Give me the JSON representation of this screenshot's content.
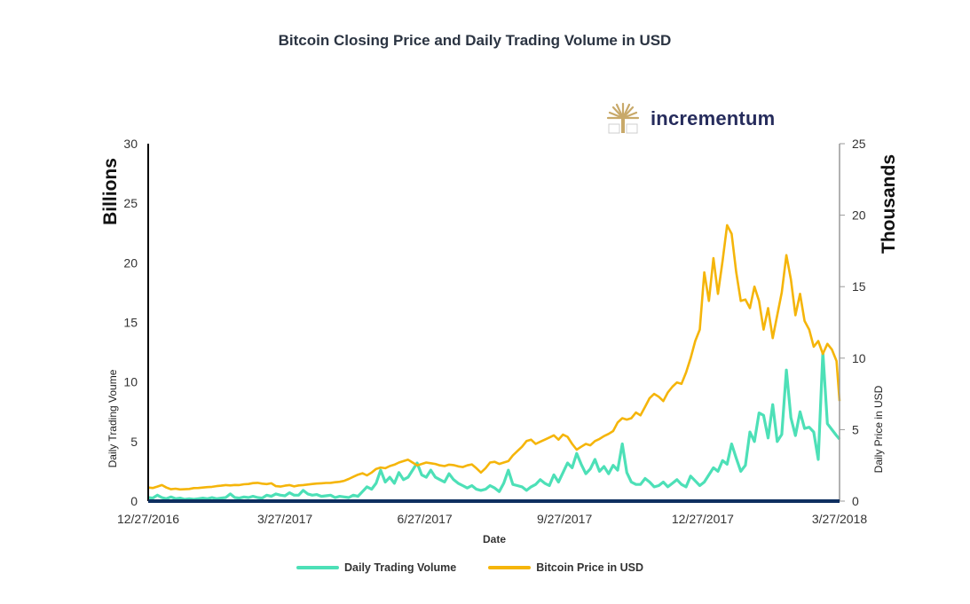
{
  "chart_data": {
    "type": "line",
    "title": "Bitcoin Closing Price and Daily Trading Volume in USD",
    "xlabel": "Date",
    "x_start_date": "12/27/2016",
    "x_end_date": "3/27/2018",
    "x_range_days": [
      0,
      455
    ],
    "x_ticks": [
      {
        "label": "12/27/2016",
        "day": 0
      },
      {
        "label": "3/27/2017",
        "day": 90
      },
      {
        "label": "6/27/2017",
        "day": 182
      },
      {
        "label": "9/27/2017",
        "day": 274
      },
      {
        "label": "12/27/2017",
        "day": 365
      },
      {
        "label": "3/27/2018",
        "day": 455
      }
    ],
    "y_left": {
      "title_big": "Billions",
      "title_small": "Daily Trading Voume",
      "range": [
        0,
        30
      ],
      "ticks": [
        "0",
        "5",
        "10",
        "15",
        "20",
        "25",
        "30"
      ]
    },
    "y_right": {
      "title_big": "Thousands",
      "title_small": "Daily Price in USD",
      "range": [
        0,
        25
      ],
      "ticks": [
        "0",
        "5",
        "10",
        "15",
        "20",
        "25"
      ]
    },
    "grid": false,
    "legend_position": "bottom",
    "series": [
      {
        "name": "Daily Trading Volume",
        "axis": "left",
        "unit": "USD billions",
        "color": "#4de0b7",
        "points": [
          [
            0,
            0.3
          ],
          [
            3,
            0.25
          ],
          [
            6,
            0.5
          ],
          [
            9,
            0.3
          ],
          [
            12,
            0.2
          ],
          [
            15,
            0.35
          ],
          [
            18,
            0.2
          ],
          [
            21,
            0.25
          ],
          [
            24,
            0.15
          ],
          [
            27,
            0.2
          ],
          [
            30,
            0.15
          ],
          [
            33,
            0.2
          ],
          [
            36,
            0.25
          ],
          [
            39,
            0.2
          ],
          [
            42,
            0.3
          ],
          [
            45,
            0.2
          ],
          [
            48,
            0.25
          ],
          [
            51,
            0.3
          ],
          [
            54,
            0.6
          ],
          [
            57,
            0.3
          ],
          [
            60,
            0.25
          ],
          [
            63,
            0.35
          ],
          [
            66,
            0.3
          ],
          [
            69,
            0.4
          ],
          [
            72,
            0.3
          ],
          [
            75,
            0.25
          ],
          [
            78,
            0.5
          ],
          [
            81,
            0.4
          ],
          [
            84,
            0.6
          ],
          [
            87,
            0.5
          ],
          [
            90,
            0.45
          ],
          [
            93,
            0.7
          ],
          [
            96,
            0.5
          ],
          [
            99,
            0.5
          ],
          [
            102,
            0.9
          ],
          [
            105,
            0.6
          ],
          [
            108,
            0.5
          ],
          [
            111,
            0.55
          ],
          [
            114,
            0.4
          ],
          [
            117,
            0.45
          ],
          [
            120,
            0.5
          ],
          [
            123,
            0.3
          ],
          [
            126,
            0.4
          ],
          [
            129,
            0.35
          ],
          [
            132,
            0.3
          ],
          [
            135,
            0.5
          ],
          [
            138,
            0.4
          ],
          [
            141,
            0.8
          ],
          [
            144,
            1.2
          ],
          [
            147,
            1.0
          ],
          [
            150,
            1.5
          ],
          [
            153,
            2.6
          ],
          [
            156,
            1.6
          ],
          [
            159,
            2.0
          ],
          [
            162,
            1.5
          ],
          [
            165,
            2.4
          ],
          [
            168,
            1.8
          ],
          [
            171,
            2.0
          ],
          [
            174,
            2.6
          ],
          [
            177,
            3.2
          ],
          [
            180,
            2.2
          ],
          [
            183,
            2.0
          ],
          [
            186,
            2.6
          ],
          [
            189,
            2.0
          ],
          [
            192,
            1.8
          ],
          [
            195,
            1.6
          ],
          [
            198,
            2.3
          ],
          [
            201,
            1.8
          ],
          [
            204,
            1.5
          ],
          [
            207,
            1.3
          ],
          [
            210,
            1.1
          ],
          [
            213,
            1.3
          ],
          [
            216,
            1.0
          ],
          [
            219,
            0.9
          ],
          [
            222,
            1.0
          ],
          [
            225,
            1.3
          ],
          [
            228,
            1.1
          ],
          [
            231,
            0.8
          ],
          [
            234,
            1.5
          ],
          [
            237,
            2.6
          ],
          [
            240,
            1.4
          ],
          [
            243,
            1.3
          ],
          [
            246,
            1.2
          ],
          [
            249,
            0.9
          ],
          [
            252,
            1.2
          ],
          [
            255,
            1.4
          ],
          [
            258,
            1.8
          ],
          [
            261,
            1.5
          ],
          [
            264,
            1.3
          ],
          [
            267,
            2.2
          ],
          [
            270,
            1.6
          ],
          [
            273,
            2.4
          ],
          [
            276,
            3.2
          ],
          [
            279,
            2.8
          ],
          [
            282,
            4.0
          ],
          [
            285,
            3.1
          ],
          [
            288,
            2.3
          ],
          [
            291,
            2.7
          ],
          [
            294,
            3.5
          ],
          [
            297,
            2.5
          ],
          [
            300,
            2.9
          ],
          [
            303,
            2.3
          ],
          [
            306,
            3.0
          ],
          [
            309,
            2.6
          ],
          [
            312,
            4.8
          ],
          [
            315,
            2.4
          ],
          [
            318,
            1.6
          ],
          [
            321,
            1.4
          ],
          [
            324,
            1.4
          ],
          [
            327,
            1.9
          ],
          [
            330,
            1.6
          ],
          [
            333,
            1.2
          ],
          [
            336,
            1.3
          ],
          [
            339,
            1.6
          ],
          [
            342,
            1.2
          ],
          [
            345,
            1.5
          ],
          [
            348,
            1.8
          ],
          [
            351,
            1.4
          ],
          [
            354,
            1.2
          ],
          [
            357,
            2.1
          ],
          [
            360,
            1.7
          ],
          [
            363,
            1.3
          ],
          [
            366,
            1.6
          ],
          [
            369,
            2.2
          ],
          [
            372,
            2.8
          ],
          [
            375,
            2.5
          ],
          [
            378,
            3.4
          ],
          [
            381,
            3.1
          ],
          [
            384,
            4.8
          ],
          [
            387,
            3.6
          ],
          [
            390,
            2.5
          ],
          [
            393,
            3.0
          ],
          [
            396,
            5.8
          ],
          [
            399,
            5.0
          ],
          [
            402,
            7.4
          ],
          [
            405,
            7.2
          ],
          [
            408,
            5.3
          ],
          [
            411,
            8.1
          ],
          [
            414,
            5.0
          ],
          [
            417,
            5.6
          ],
          [
            420,
            11.0
          ],
          [
            423,
            7.0
          ],
          [
            426,
            5.5
          ],
          [
            429,
            7.5
          ],
          [
            432,
            6.1
          ],
          [
            435,
            6.2
          ],
          [
            438,
            5.8
          ],
          [
            441,
            3.5
          ],
          [
            444,
            12.5
          ],
          [
            447,
            6.5
          ],
          [
            450,
            6.0
          ],
          [
            453,
            5.5
          ],
          [
            455,
            5.2
          ]
        ]
      },
      {
        "name": "Bitcoin Price in USD",
        "axis": "right",
        "unit": "USD thousands",
        "color": "#f5b50a",
        "points": [
          [
            0,
            0.95
          ],
          [
            3,
            0.92
          ],
          [
            6,
            1.02
          ],
          [
            9,
            1.12
          ],
          [
            12,
            0.95
          ],
          [
            15,
            0.83
          ],
          [
            18,
            0.87
          ],
          [
            21,
            0.82
          ],
          [
            24,
            0.83
          ],
          [
            27,
            0.85
          ],
          [
            30,
            0.91
          ],
          [
            33,
            0.92
          ],
          [
            36,
            0.95
          ],
          [
            39,
            0.98
          ],
          [
            42,
            1.0
          ],
          [
            45,
            1.05
          ],
          [
            48,
            1.08
          ],
          [
            51,
            1.12
          ],
          [
            54,
            1.1
          ],
          [
            57,
            1.13
          ],
          [
            60,
            1.12
          ],
          [
            63,
            1.18
          ],
          [
            66,
            1.2
          ],
          [
            69,
            1.26
          ],
          [
            72,
            1.28
          ],
          [
            75,
            1.22
          ],
          [
            78,
            1.19
          ],
          [
            81,
            1.25
          ],
          [
            84,
            1.05
          ],
          [
            87,
            1.02
          ],
          [
            90,
            1.08
          ],
          [
            93,
            1.12
          ],
          [
            96,
            1.03
          ],
          [
            99,
            1.1
          ],
          [
            102,
            1.12
          ],
          [
            105,
            1.16
          ],
          [
            108,
            1.2
          ],
          [
            111,
            1.23
          ],
          [
            114,
            1.25
          ],
          [
            117,
            1.27
          ],
          [
            120,
            1.28
          ],
          [
            123,
            1.32
          ],
          [
            126,
            1.35
          ],
          [
            129,
            1.42
          ],
          [
            132,
            1.55
          ],
          [
            135,
            1.7
          ],
          [
            138,
            1.85
          ],
          [
            141,
            1.95
          ],
          [
            144,
            1.8
          ],
          [
            147,
            2.0
          ],
          [
            150,
            2.25
          ],
          [
            153,
            2.35
          ],
          [
            156,
            2.3
          ],
          [
            159,
            2.45
          ],
          [
            162,
            2.55
          ],
          [
            165,
            2.7
          ],
          [
            168,
            2.8
          ],
          [
            171,
            2.9
          ],
          [
            174,
            2.7
          ],
          [
            177,
            2.5
          ],
          [
            180,
            2.6
          ],
          [
            183,
            2.7
          ],
          [
            186,
            2.65
          ],
          [
            189,
            2.6
          ],
          [
            192,
            2.5
          ],
          [
            195,
            2.45
          ],
          [
            198,
            2.55
          ],
          [
            201,
            2.52
          ],
          [
            204,
            2.43
          ],
          [
            207,
            2.38
          ],
          [
            210,
            2.5
          ],
          [
            213,
            2.57
          ],
          [
            216,
            2.3
          ],
          [
            219,
            2.0
          ],
          [
            222,
            2.3
          ],
          [
            225,
            2.7
          ],
          [
            228,
            2.75
          ],
          [
            231,
            2.6
          ],
          [
            234,
            2.7
          ],
          [
            237,
            2.8
          ],
          [
            240,
            3.2
          ],
          [
            243,
            3.5
          ],
          [
            246,
            3.8
          ],
          [
            249,
            4.2
          ],
          [
            252,
            4.3
          ],
          [
            255,
            4.0
          ],
          [
            258,
            4.15
          ],
          [
            261,
            4.3
          ],
          [
            264,
            4.45
          ],
          [
            267,
            4.6
          ],
          [
            270,
            4.3
          ],
          [
            273,
            4.65
          ],
          [
            276,
            4.5
          ],
          [
            279,
            4.0
          ],
          [
            282,
            3.6
          ],
          [
            285,
            3.8
          ],
          [
            288,
            4.0
          ],
          [
            291,
            3.9
          ],
          [
            294,
            4.2
          ],
          [
            297,
            4.35
          ],
          [
            300,
            4.55
          ],
          [
            303,
            4.7
          ],
          [
            306,
            4.9
          ],
          [
            309,
            5.5
          ],
          [
            312,
            5.8
          ],
          [
            315,
            5.7
          ],
          [
            318,
            5.8
          ],
          [
            321,
            6.2
          ],
          [
            324,
            6.0
          ],
          [
            327,
            6.6
          ],
          [
            330,
            7.2
          ],
          [
            333,
            7.5
          ],
          [
            336,
            7.3
          ],
          [
            339,
            7.0
          ],
          [
            342,
            7.6
          ],
          [
            345,
            8.0
          ],
          [
            348,
            8.3
          ],
          [
            351,
            8.2
          ],
          [
            354,
            9.0
          ],
          [
            357,
            10.0
          ],
          [
            360,
            11.2
          ],
          [
            363,
            12.0
          ],
          [
            366,
            16.0
          ],
          [
            369,
            14.0
          ],
          [
            372,
            17.0
          ],
          [
            375,
            14.5
          ],
          [
            378,
            16.8
          ],
          [
            381,
            19.3
          ],
          [
            384,
            18.7
          ],
          [
            387,
            16.0
          ],
          [
            390,
            14.0
          ],
          [
            393,
            14.1
          ],
          [
            396,
            13.5
          ],
          [
            399,
            15.0
          ],
          [
            402,
            14.0
          ],
          [
            405,
            12.0
          ],
          [
            408,
            13.5
          ],
          [
            411,
            11.4
          ],
          [
            414,
            13.0
          ],
          [
            417,
            14.6
          ],
          [
            420,
            17.2
          ],
          [
            423,
            15.5
          ],
          [
            426,
            13.0
          ],
          [
            429,
            14.5
          ],
          [
            432,
            12.6
          ],
          [
            435,
            12.0
          ],
          [
            438,
            10.8
          ],
          [
            441,
            11.2
          ],
          [
            444,
            10.3
          ],
          [
            447,
            11.0
          ],
          [
            450,
            10.6
          ],
          [
            453,
            9.8
          ],
          [
            455,
            7.0
          ]
        ]
      }
    ]
  },
  "logo": {
    "text": "incrementum",
    "icon": "tree-icon",
    "icon_color": "#c8a96a",
    "text_color": "#262c5c"
  },
  "legend": [
    {
      "label": "Daily Trading Volume",
      "color": "#4de0b7"
    },
    {
      "label": "Bitcoin Price in USD",
      "color": "#f5b50a"
    }
  ],
  "colors": {
    "baseline": "#0e2f60",
    "left_axis": "#000000",
    "right_axis": "#999999"
  }
}
